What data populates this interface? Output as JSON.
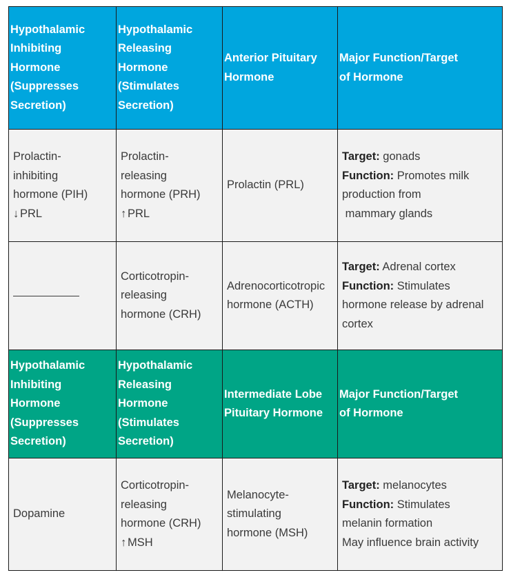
{
  "header1": {
    "inhibiting": [
      "Hypothalamic",
      "Inhibiting",
      "Hormone",
      "(Suppresses",
      "Secretion)"
    ],
    "releasing": [
      "Hypothalamic",
      "Releasing",
      "Hormone",
      "(Stimulates",
      "Secretion)"
    ],
    "pituitary": [
      "Anterior Pituitary",
      "Hormone"
    ],
    "function": [
      "Major Function/Target",
      "of Hormone"
    ]
  },
  "row_prl": {
    "inhibiting": [
      "Prolactin-",
      "inhibiting",
      "hormone (PIH)"
    ],
    "inhibiting_effect": {
      "arrow": "↓",
      "text": "PRL"
    },
    "releasing": [
      "Prolactin-",
      "releasing",
      "hormone (PRH)"
    ],
    "releasing_effect": {
      "arrow": "↑",
      "text": "PRL"
    },
    "pituitary": "Prolactin (PRL)",
    "target_label": "Target:",
    "target_value": "gonads",
    "function_label": "Function:",
    "function_value": "Promotes milk",
    "function_more": [
      "production from",
      " mammary glands"
    ]
  },
  "row_acth": {
    "inhibiting": "",
    "releasing": [
      "Corticotropin-",
      "releasing",
      "hormone (CRH)"
    ],
    "pituitary": [
      "Adrenocorticotropic",
      "hormone (ACTH)"
    ],
    "target_label": "Target:",
    "target_value": "Adrenal cortex",
    "function_label": "Function:",
    "function_value": "Stimulates",
    "function_more": [
      "hormone release by adrenal",
      "cortex"
    ]
  },
  "header2": {
    "inhibiting": [
      "Hypothalamic",
      "Inhibiting",
      "Hormone",
      "(Suppresses",
      "Secretion)"
    ],
    "releasing": [
      "Hypothalamic",
      "Releasing",
      "Hormone",
      "(Stimulates",
      "Secretion)"
    ],
    "pituitary": [
      "Intermediate Lobe",
      "Pituitary Hormone"
    ],
    "function": [
      "Major Function/Target",
      "of Hormone"
    ]
  },
  "row_msh": {
    "inhibiting": "Dopamine",
    "releasing": [
      "Corticotropin-",
      "releasing",
      "hormone (CRH)"
    ],
    "releasing_effect": {
      "arrow": "↑",
      "text": "MSH"
    },
    "pituitary": [
      "Melanocyte-",
      "stimulating",
      "hormone (MSH)"
    ],
    "target_label": "Target:",
    "target_value": "melanocytes",
    "function_label": "Function:",
    "function_value": "Stimulates",
    "function_more": [
      "melanin formation",
      "May influence brain activity"
    ]
  },
  "colors": {
    "header_blue": "#00a6de",
    "header_green": "#00a586",
    "cell_bg": "#f2f2f2",
    "border": "#1a1a1a"
  }
}
